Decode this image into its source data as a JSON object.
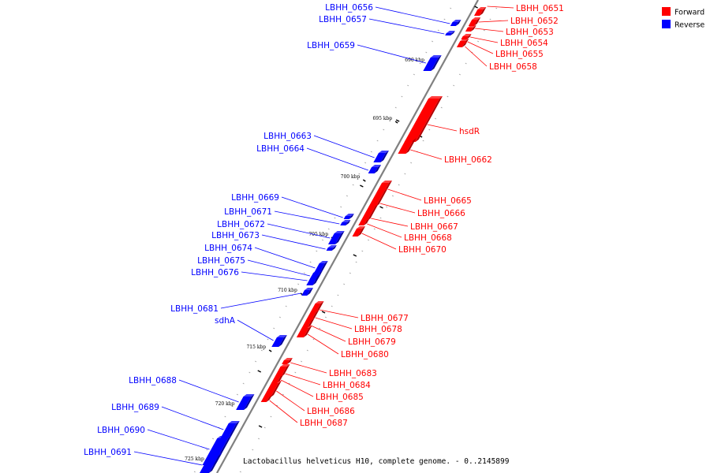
{
  "colors": {
    "forward": "#ff0000",
    "reverse": "#0000ff",
    "backbone": "#808080"
  },
  "legend": {
    "forward_label": "Forward",
    "reverse_label": "Reverse"
  },
  "caption": "Lactobacillus helveticus H10, complete genome. - 0..2145899",
  "ticks": [
    "690 kbp",
    "695 kbp",
    "700 kbp",
    "705 kbp",
    "710 kbp",
    "715 kbp",
    "720 kbp",
    "725 kbp"
  ],
  "genes_forward": [
    "LBHH_0651",
    "LBHH_0652",
    "LBHH_0653",
    "LBHH_0654",
    "LBHH_0655",
    "LBHH_0658",
    "hsdR",
    "LBHH_0662",
    "LBHH_0665",
    "LBHH_0666",
    "LBHH_0667",
    "LBHH_0668",
    "LBHH_0670",
    "LBHH_0677",
    "LBHH_0678",
    "LBHH_0679",
    "LBHH_0680",
    "LBHH_0683",
    "LBHH_0684",
    "LBHH_0685",
    "LBHH_0686",
    "LBHH_0687"
  ],
  "genes_reverse": [
    "LBHH_0656",
    "LBHH_0657",
    "LBHH_0659",
    "LBHH_0663",
    "LBHH_0664",
    "LBHH_0669",
    "LBHH_0671",
    "LBHH_0672",
    "LBHH_0673",
    "LBHH_0674",
    "LBHH_0675",
    "LBHH_0676",
    "LBHH_0681",
    "sdhA",
    "LBHH_0688",
    "LBHH_0689",
    "LBHH_0690",
    "LBHH_0691"
  ]
}
